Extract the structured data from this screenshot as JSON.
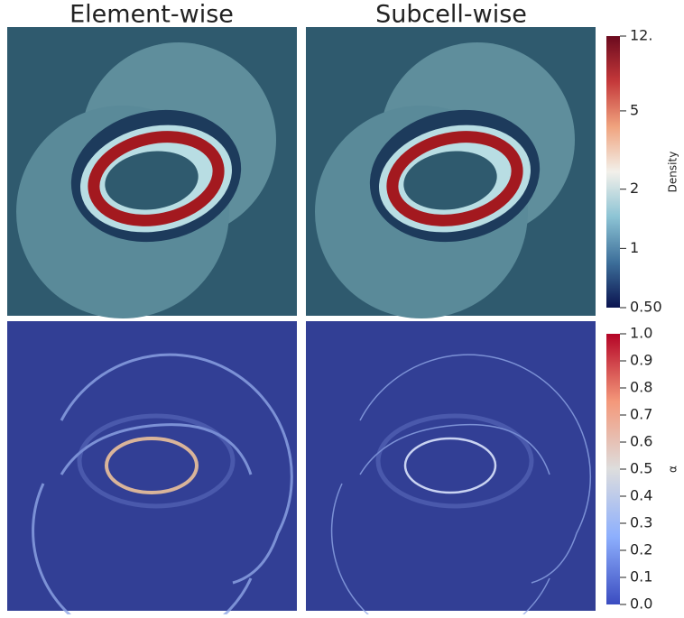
{
  "panels": {
    "columns": [
      "Element-wise",
      "Subcell-wise"
    ]
  },
  "colorbars": [
    {
      "label": "Density",
      "scale": "log",
      "lim": [
        0.5,
        12
      ],
      "ticks": [
        {
          "value": 0.5,
          "label": "0.50"
        },
        1,
        2,
        5,
        {
          "value": 12,
          "label": "12."
        }
      ],
      "colors": [
        "#0b1450",
        "#3d6f9a",
        "#8cc3d4",
        "#f2f0ea",
        "#f0a37e",
        "#c4383a",
        "#6b0a1e"
      ]
    },
    {
      "label": "α",
      "lim": [
        0,
        1
      ],
      "ticks": [
        {
          "value": 0,
          "label": "0.0"
        },
        0.1,
        0.2,
        0.3,
        0.4,
        0.5,
        0.6,
        0.7,
        0.8,
        0.9,
        {
          "value": 1,
          "label": "1.0"
        }
      ],
      "colors": [
        "#3b4cc0",
        "#8daffd",
        "#dddddd",
        "#f4987a",
        "#b40426"
      ]
    }
  ]
}
